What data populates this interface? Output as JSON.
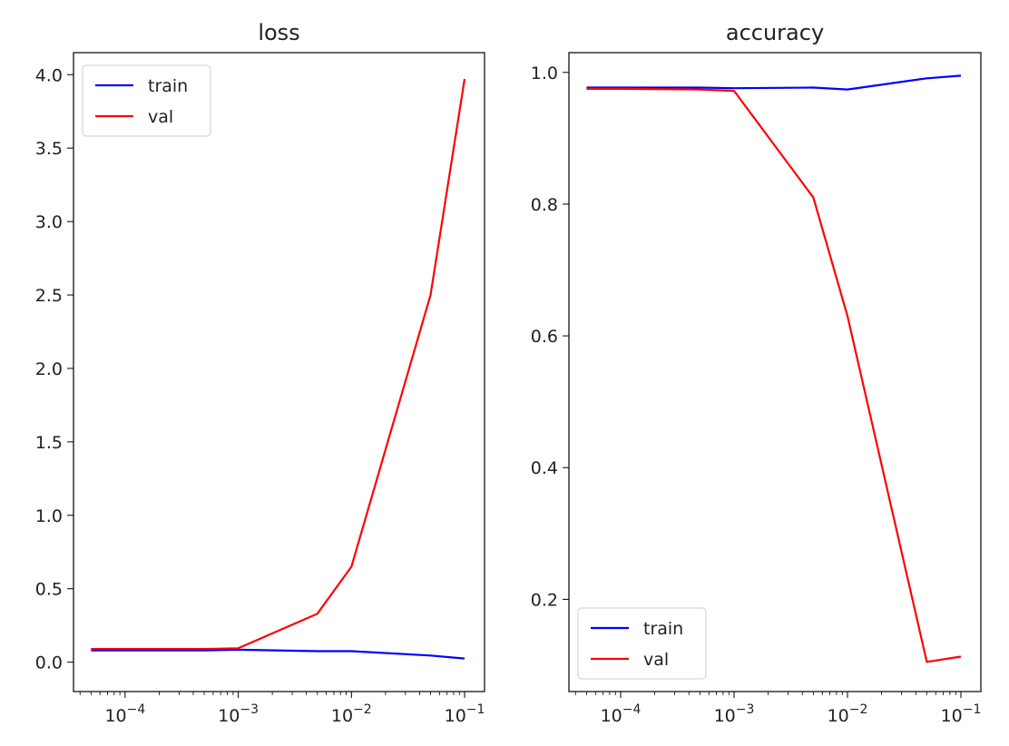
{
  "chart_data": [
    {
      "type": "line",
      "title": "loss",
      "xlabel": "",
      "ylabel": "",
      "xscale": "log",
      "xlim": [
        3.5e-05,
        0.15
      ],
      "ylim": [
        -0.2,
        4.15
      ],
      "xticks": [
        {
          "value": 0.0001,
          "base": "10",
          "exp": "−4"
        },
        {
          "value": 0.001,
          "base": "10",
          "exp": "−3"
        },
        {
          "value": 0.01,
          "base": "10",
          "exp": "−2"
        },
        {
          "value": 0.1,
          "base": "10",
          "exp": "−1"
        }
      ],
      "yticks": [
        {
          "value": 0.0,
          "label": "0.0"
        },
        {
          "value": 0.5,
          "label": "0.5"
        },
        {
          "value": 1.0,
          "label": "1.0"
        },
        {
          "value": 1.5,
          "label": "1.5"
        },
        {
          "value": 2.0,
          "label": "2.0"
        },
        {
          "value": 2.5,
          "label": "2.5"
        },
        {
          "value": 3.0,
          "label": "3.0"
        },
        {
          "value": 3.5,
          "label": "3.5"
        },
        {
          "value": 4.0,
          "label": "4.0"
        }
      ],
      "grid": false,
      "legend": "upper left",
      "x": [
        5e-05,
        0.0001,
        0.0005,
        0.001,
        0.005,
        0.01,
        0.05,
        0.1
      ],
      "series": [
        {
          "name": "train",
          "color": "#0000ff",
          "values": [
            0.08,
            0.08,
            0.08,
            0.085,
            0.075,
            0.075,
            0.045,
            0.025
          ]
        },
        {
          "name": "val",
          "color": "#ff0000",
          "values": [
            0.09,
            0.09,
            0.09,
            0.095,
            0.33,
            0.65,
            2.5,
            3.97
          ]
        }
      ]
    },
    {
      "type": "line",
      "title": "accuracy",
      "xlabel": "",
      "ylabel": "",
      "xscale": "log",
      "xlim": [
        3.5e-05,
        0.15
      ],
      "ylim": [
        0.06,
        1.03
      ],
      "xticks": [
        {
          "value": 0.0001,
          "base": "10",
          "exp": "−4"
        },
        {
          "value": 0.001,
          "base": "10",
          "exp": "−3"
        },
        {
          "value": 0.01,
          "base": "10",
          "exp": "−2"
        },
        {
          "value": 0.1,
          "base": "10",
          "exp": "−1"
        }
      ],
      "yticks": [
        {
          "value": 0.2,
          "label": "0.2"
        },
        {
          "value": 0.4,
          "label": "0.4"
        },
        {
          "value": 0.6,
          "label": "0.6"
        },
        {
          "value": 0.8,
          "label": "0.8"
        },
        {
          "value": 1.0,
          "label": "1.0"
        }
      ],
      "grid": false,
      "legend": "lower left",
      "x": [
        5e-05,
        0.0001,
        0.0005,
        0.001,
        0.005,
        0.01,
        0.05,
        0.1
      ],
      "series": [
        {
          "name": "train",
          "color": "#0000ff",
          "values": [
            0.977,
            0.977,
            0.977,
            0.976,
            0.977,
            0.974,
            0.991,
            0.995
          ]
        },
        {
          "name": "val",
          "color": "#ff0000",
          "values": [
            0.975,
            0.975,
            0.974,
            0.972,
            0.81,
            0.63,
            0.105,
            0.113
          ]
        }
      ]
    }
  ]
}
